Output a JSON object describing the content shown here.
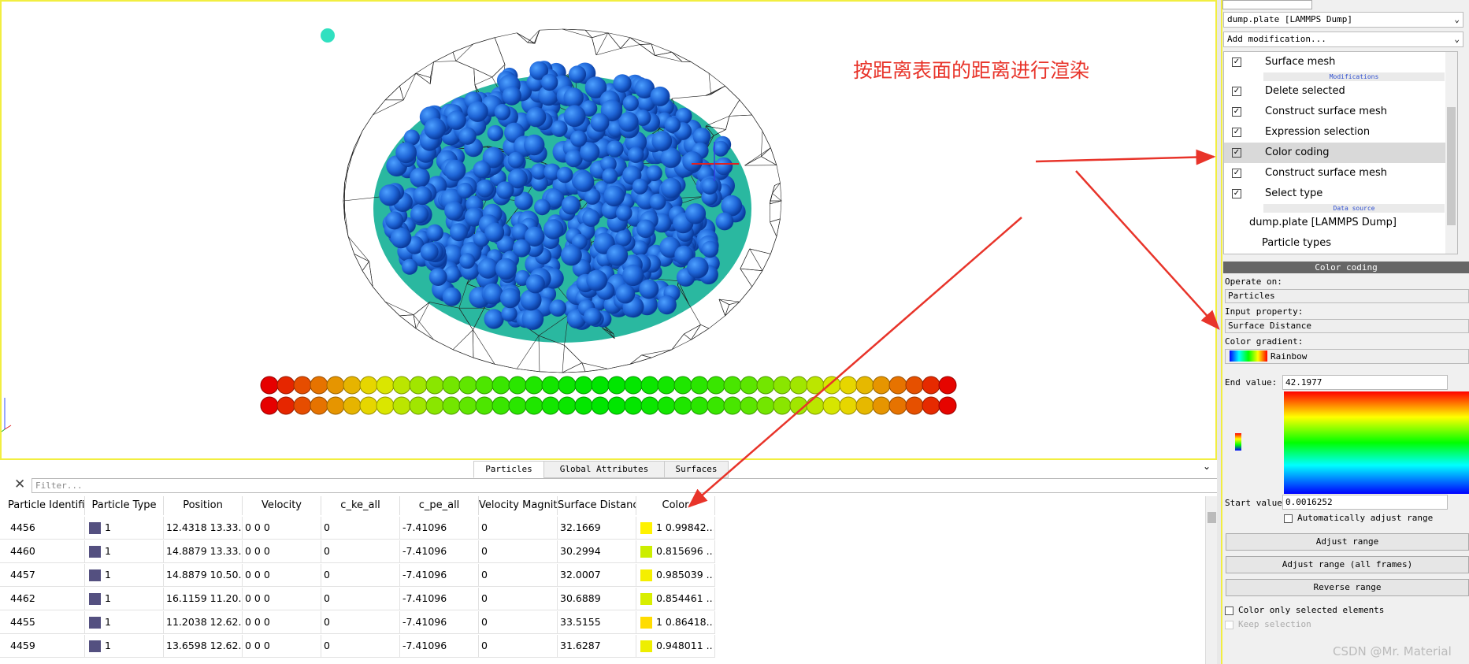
{
  "annotation": "按距离表面的距离进行渲染",
  "pipeline": {
    "source": "dump.plate [LAMMPS Dump]",
    "add_modification": "Add modification...",
    "visual_elements": [
      "Surface mesh"
    ],
    "modifications_header": "Modifications",
    "modifications": [
      "Delete selected",
      "Construct surface mesh",
      "Expression selection",
      "Color coding",
      "Construct surface mesh",
      "Select type"
    ],
    "selected_modification": 3,
    "data_source_header": "Data source",
    "data_source": [
      "dump.plate [LAMMPS Dump]",
      "Particle types"
    ]
  },
  "color_coding": {
    "title": "Color coding",
    "operate_on_label": "Operate on:",
    "operate_on": "Particles",
    "input_property_label": "Input property:",
    "input_property": "Surface Distance",
    "gradient_label": "Color gradient:",
    "gradient": "Rainbow",
    "end_label": "End value:",
    "end_value": "42.1977",
    "start_label": "Start value:",
    "start_value": "0.0016252",
    "auto_adjust": "Automatically adjust range",
    "buttons": [
      "Adjust range",
      "Adjust range (all frames)",
      "Reverse range"
    ],
    "color_only_selected": "Color only selected elements",
    "keep_selection": "Keep selection"
  },
  "data_inspector": {
    "tabs": [
      "Particles",
      "Global Attributes",
      "Surfaces"
    ],
    "active_tab": 0,
    "filter_placeholder": "Filter...",
    "columns": [
      "Particle Identifier",
      "Particle Type",
      "Position",
      "Velocity",
      "c_ke_all",
      "c_pe_all",
      "Velocity Magnitude",
      "Surface Distance",
      "Color"
    ],
    "rows": [
      {
        "cells": [
          "4456",
          "1",
          "12.4318 13.33...",
          "0 0 0",
          "0",
          "-7.41096",
          "0",
          "32.1669",
          "1 0.99842..."
        ],
        "swatch": "#fff200"
      },
      {
        "cells": [
          "4460",
          "1",
          "14.8879 13.33...",
          "0 0 0",
          "0",
          "-7.41096",
          "0",
          "30.2994",
          "0.815696 ..."
        ],
        "swatch": "#ccee00"
      },
      {
        "cells": [
          "4457",
          "1",
          "14.8879 10.50...",
          "0 0 0",
          "0",
          "-7.41096",
          "0",
          "32.0007",
          "0.985039 ..."
        ],
        "swatch": "#f5ef00"
      },
      {
        "cells": [
          "4462",
          "1",
          "16.1159 11.20...",
          "0 0 0",
          "0",
          "-7.41096",
          "0",
          "30.6889",
          "0.854461 ..."
        ],
        "swatch": "#d8ee00"
      },
      {
        "cells": [
          "4455",
          "1",
          "11.2038 12.62...",
          "0 0 0",
          "0",
          "-7.41096",
          "0",
          "33.5155",
          "1 0.86418..."
        ],
        "swatch": "#ffdc00"
      },
      {
        "cells": [
          "4459",
          "1",
          "13.6598 12.62...",
          "0 0 0",
          "0",
          "-7.41096",
          "0",
          "31.6287",
          "0.948011 ..."
        ],
        "swatch": "#eeee00"
      }
    ]
  },
  "watermark": "CSDN @Mr. Material"
}
